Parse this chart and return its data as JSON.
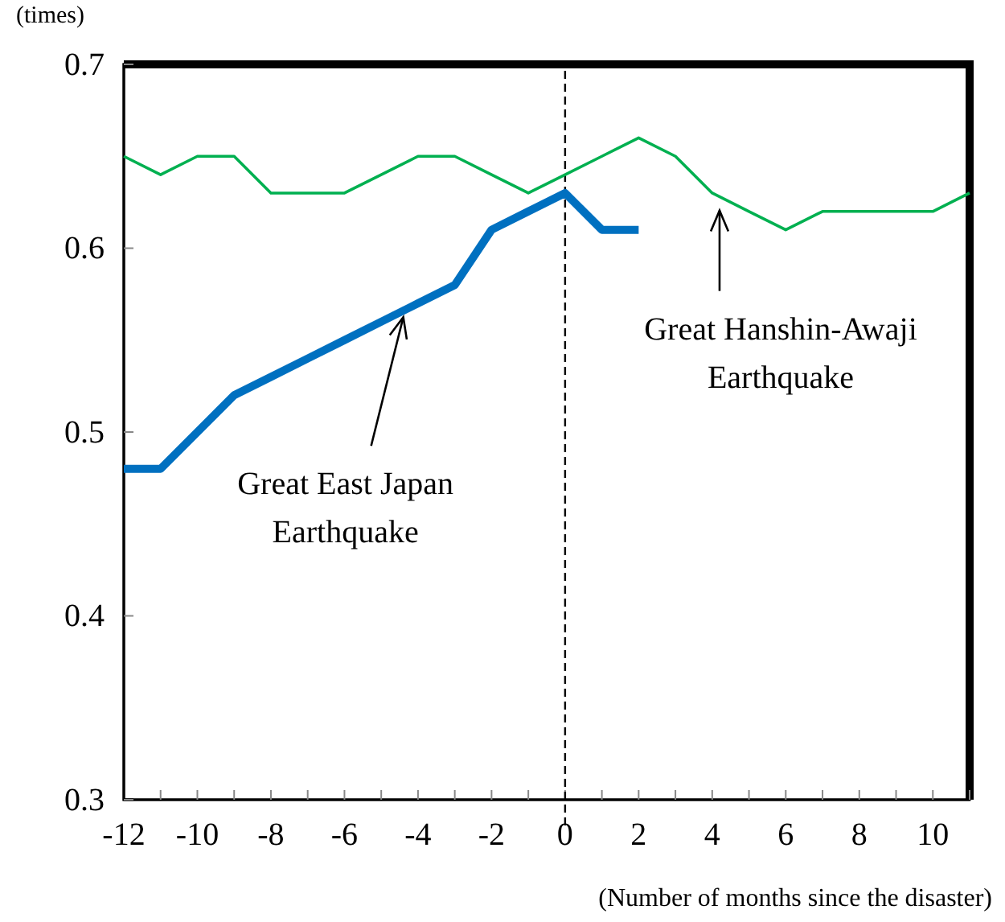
{
  "chart_data": {
    "type": "line",
    "ylabel": "(times)",
    "xlabel": "(Number of months since the disaster)",
    "x": [
      -12,
      -11,
      -10,
      -9,
      -8,
      -7,
      -6,
      -5,
      -4,
      -3,
      -2,
      -1,
      0,
      1,
      2,
      3,
      4,
      5,
      6,
      7,
      8,
      9,
      10,
      11
    ],
    "series": [
      {
        "color": "#00b050",
        "values": [
          0.65,
          0.64,
          0.65,
          0.65,
          0.63,
          0.63,
          0.63,
          0.64,
          0.65,
          0.65,
          0.64,
          0.63,
          0.64,
          0.65,
          0.66,
          0.65,
          0.63,
          0.62,
          0.61,
          0.62,
          0.62,
          0.62,
          0.62,
          0.63
        ]
      },
      {
        "color": "#0070c0",
        "values": [
          0.48,
          0.48,
          0.5,
          0.52,
          0.53,
          0.54,
          0.55,
          0.56,
          0.57,
          0.58,
          0.61,
          0.62,
          0.63,
          0.61,
          0.61,
          null,
          null,
          null,
          null,
          null,
          null,
          null,
          null,
          null
        ]
      }
    ],
    "xlim": [
      -12,
      11
    ],
    "xticks": [
      -12,
      -10,
      -8,
      -6,
      -4,
      -2,
      0,
      2,
      4,
      6,
      8,
      10
    ],
    "ylim": [
      0.3,
      0.7
    ],
    "yticks": [
      {
        "value": 0.3,
        "label": "0.3"
      },
      {
        "value": 0.4,
        "label": "0.4"
      },
      {
        "value": 0.5,
        "label": "0.5"
      },
      {
        "value": 0.6,
        "label": "0.6"
      },
      {
        "value": 0.7,
        "label": "0.7"
      }
    ],
    "ref_lines": [
      {
        "axis": "x",
        "value": 0,
        "color": "#000000",
        "line_style": "dashed"
      }
    ],
    "annotations": [
      {
        "text": "Great East Japan Earthquake",
        "x": -4.4,
        "y": 0.566
      },
      {
        "text": "Great Hanshin-Awaji Earthquake",
        "x": 4.2,
        "y": 0.624
      }
    ],
    "grid": false,
    "marker": "none",
    "line_style": "solid"
  }
}
